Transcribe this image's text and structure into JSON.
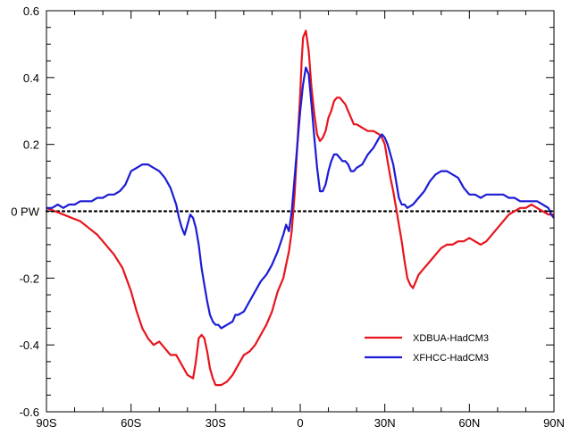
{
  "chart_data": {
    "type": "line",
    "title": "",
    "xlabel": "",
    "ylabel": "",
    "xlim": [
      -90,
      90
    ],
    "ylim": [
      -0.6,
      0.6
    ],
    "x_ticks": [
      {
        "value": -90,
        "label": "90S"
      },
      {
        "value": -60,
        "label": "60S"
      },
      {
        "value": -30,
        "label": "30S"
      },
      {
        "value": 0,
        "label": "0"
      },
      {
        "value": 30,
        "label": "30N"
      },
      {
        "value": 60,
        "label": "60N"
      },
      {
        "value": 90,
        "label": "90N"
      }
    ],
    "y_ticks": [
      {
        "value": -0.6,
        "label": "-0.6"
      },
      {
        "value": -0.4,
        "label": "-0.4"
      },
      {
        "value": -0.2,
        "label": "-0.2"
      },
      {
        "value": 0,
        "label": "0 PW"
      },
      {
        "value": 0.2,
        "label": "0.2"
      },
      {
        "value": 0.4,
        "label": "0.4"
      },
      {
        "value": 0.6,
        "label": "0.6"
      }
    ],
    "zero_line": "dotted",
    "grid": false,
    "legend": "bottom-right",
    "series": [
      {
        "name": "XDBUA-HadCM3",
        "color": "#e8141c",
        "points": [
          [
            -90,
            0.01
          ],
          [
            -87,
            0.0
          ],
          [
            -84,
            -0.01
          ],
          [
            -81,
            -0.02
          ],
          [
            -78,
            -0.03
          ],
          [
            -75,
            -0.05
          ],
          [
            -72,
            -0.07
          ],
          [
            -69,
            -0.1
          ],
          [
            -66,
            -0.13
          ],
          [
            -63,
            -0.17
          ],
          [
            -60,
            -0.24
          ],
          [
            -58,
            -0.3
          ],
          [
            -56,
            -0.35
          ],
          [
            -54,
            -0.38
          ],
          [
            -52,
            -0.4
          ],
          [
            -50,
            -0.39
          ],
          [
            -48,
            -0.41
          ],
          [
            -46,
            -0.43
          ],
          [
            -44,
            -0.43
          ],
          [
            -42,
            -0.46
          ],
          [
            -40,
            -0.49
          ],
          [
            -38,
            -0.5
          ],
          [
            -37,
            -0.45
          ],
          [
            -36,
            -0.38
          ],
          [
            -35,
            -0.37
          ],
          [
            -34,
            -0.38
          ],
          [
            -33,
            -0.42
          ],
          [
            -32,
            -0.47
          ],
          [
            -31,
            -0.5
          ],
          [
            -30,
            -0.52
          ],
          [
            -29,
            -0.52
          ],
          [
            -28,
            -0.52
          ],
          [
            -26,
            -0.51
          ],
          [
            -24,
            -0.49
          ],
          [
            -22,
            -0.46
          ],
          [
            -20,
            -0.43
          ],
          [
            -18,
            -0.42
          ],
          [
            -16,
            -0.4
          ],
          [
            -14,
            -0.37
          ],
          [
            -12,
            -0.34
          ],
          [
            -10,
            -0.3
          ],
          [
            -8,
            -0.24
          ],
          [
            -6,
            -0.2
          ],
          [
            -5,
            -0.16
          ],
          [
            -4,
            -0.12
          ],
          [
            -3,
            -0.06
          ],
          [
            -2,
            0.05
          ],
          [
            -1,
            0.2
          ],
          [
            0,
            0.35
          ],
          [
            0.5,
            0.45
          ],
          [
            1,
            0.52
          ],
          [
            2,
            0.54
          ],
          [
            3,
            0.48
          ],
          [
            4,
            0.37
          ],
          [
            5,
            0.29
          ],
          [
            6,
            0.23
          ],
          [
            7,
            0.21
          ],
          [
            8,
            0.22
          ],
          [
            9,
            0.24
          ],
          [
            10,
            0.28
          ],
          [
            11,
            0.3
          ],
          [
            12,
            0.33
          ],
          [
            13,
            0.34
          ],
          [
            14,
            0.34
          ],
          [
            15,
            0.33
          ],
          [
            16,
            0.32
          ],
          [
            17,
            0.3
          ],
          [
            18,
            0.28
          ],
          [
            19,
            0.26
          ],
          [
            20,
            0.26
          ],
          [
            22,
            0.25
          ],
          [
            24,
            0.24
          ],
          [
            26,
            0.24
          ],
          [
            28,
            0.23
          ],
          [
            29,
            0.22
          ],
          [
            30,
            0.2
          ],
          [
            31,
            0.15
          ],
          [
            32,
            0.1
          ],
          [
            33,
            0.06
          ],
          [
            34,
            0.01
          ],
          [
            35,
            -0.04
          ],
          [
            36,
            -0.09
          ],
          [
            37,
            -0.15
          ],
          [
            38,
            -0.2
          ],
          [
            39,
            -0.22
          ],
          [
            40,
            -0.23
          ],
          [
            41,
            -0.21
          ],
          [
            42,
            -0.19
          ],
          [
            44,
            -0.17
          ],
          [
            46,
            -0.15
          ],
          [
            48,
            -0.13
          ],
          [
            50,
            -0.11
          ],
          [
            52,
            -0.1
          ],
          [
            54,
            -0.1
          ],
          [
            56,
            -0.09
          ],
          [
            58,
            -0.09
          ],
          [
            60,
            -0.08
          ],
          [
            62,
            -0.09
          ],
          [
            64,
            -0.1
          ],
          [
            66,
            -0.09
          ],
          [
            68,
            -0.07
          ],
          [
            70,
            -0.05
          ],
          [
            72,
            -0.03
          ],
          [
            74,
            -0.01
          ],
          [
            76,
            0.0
          ],
          [
            78,
            0.01
          ],
          [
            80,
            0.01
          ],
          [
            82,
            0.02
          ],
          [
            84,
            0.01
          ],
          [
            86,
            0.0
          ],
          [
            88,
            -0.01
          ],
          [
            90,
            -0.01
          ]
        ]
      },
      {
        "name": "XFHCC-HadCM3",
        "color": "#1c1cd6",
        "points": [
          [
            -90,
            0.01
          ],
          [
            -88,
            0.01
          ],
          [
            -86,
            0.02
          ],
          [
            -84,
            0.01
          ],
          [
            -82,
            0.02
          ],
          [
            -80,
            0.02
          ],
          [
            -78,
            0.03
          ],
          [
            -76,
            0.03
          ],
          [
            -74,
            0.03
          ],
          [
            -72,
            0.04
          ],
          [
            -70,
            0.04
          ],
          [
            -68,
            0.05
          ],
          [
            -66,
            0.05
          ],
          [
            -64,
            0.06
          ],
          [
            -62,
            0.08
          ],
          [
            -60,
            0.12
          ],
          [
            -58,
            0.13
          ],
          [
            -56,
            0.14
          ],
          [
            -54,
            0.14
          ],
          [
            -52,
            0.13
          ],
          [
            -50,
            0.12
          ],
          [
            -48,
            0.1
          ],
          [
            -46,
            0.07
          ],
          [
            -44,
            0.02
          ],
          [
            -43,
            -0.02
          ],
          [
            -42,
            -0.05
          ],
          [
            -41,
            -0.07
          ],
          [
            -40,
            -0.04
          ],
          [
            -39,
            -0.01
          ],
          [
            -38,
            -0.02
          ],
          [
            -37,
            -0.05
          ],
          [
            -36,
            -0.1
          ],
          [
            -35,
            -0.17
          ],
          [
            -34,
            -0.22
          ],
          [
            -33,
            -0.27
          ],
          [
            -32,
            -0.31
          ],
          [
            -31,
            -0.33
          ],
          [
            -30,
            -0.34
          ],
          [
            -29,
            -0.34
          ],
          [
            -28,
            -0.35
          ],
          [
            -26,
            -0.34
          ],
          [
            -24,
            -0.33
          ],
          [
            -23,
            -0.31
          ],
          [
            -22,
            -0.31
          ],
          [
            -20,
            -0.3
          ],
          [
            -18,
            -0.27
          ],
          [
            -16,
            -0.24
          ],
          [
            -14,
            -0.21
          ],
          [
            -12,
            -0.19
          ],
          [
            -10,
            -0.16
          ],
          [
            -8,
            -0.12
          ],
          [
            -6,
            -0.07
          ],
          [
            -5,
            -0.04
          ],
          [
            -4,
            -0.06
          ],
          [
            -3,
            0.0
          ],
          [
            -2,
            0.1
          ],
          [
            -1,
            0.2
          ],
          [
            0,
            0.3
          ],
          [
            1,
            0.38
          ],
          [
            2,
            0.43
          ],
          [
            3,
            0.41
          ],
          [
            4,
            0.32
          ],
          [
            5,
            0.22
          ],
          [
            6,
            0.13
          ],
          [
            7,
            0.06
          ],
          [
            8,
            0.06
          ],
          [
            9,
            0.08
          ],
          [
            10,
            0.12
          ],
          [
            11,
            0.15
          ],
          [
            12,
            0.17
          ],
          [
            13,
            0.17
          ],
          [
            14,
            0.16
          ],
          [
            15,
            0.15
          ],
          [
            16,
            0.15
          ],
          [
            17,
            0.14
          ],
          [
            18,
            0.12
          ],
          [
            19,
            0.12
          ],
          [
            20,
            0.13
          ],
          [
            22,
            0.14
          ],
          [
            24,
            0.17
          ],
          [
            26,
            0.19
          ],
          [
            28,
            0.22
          ],
          [
            29,
            0.23
          ],
          [
            30,
            0.22
          ],
          [
            31,
            0.2
          ],
          [
            32,
            0.17
          ],
          [
            33,
            0.14
          ],
          [
            34,
            0.09
          ],
          [
            35,
            0.04
          ],
          [
            36,
            0.02
          ],
          [
            37,
            0.02
          ],
          [
            38,
            0.01
          ],
          [
            40,
            0.02
          ],
          [
            42,
            0.04
          ],
          [
            44,
            0.06
          ],
          [
            46,
            0.09
          ],
          [
            48,
            0.11
          ],
          [
            50,
            0.12
          ],
          [
            52,
            0.12
          ],
          [
            54,
            0.11
          ],
          [
            56,
            0.1
          ],
          [
            58,
            0.07
          ],
          [
            60,
            0.05
          ],
          [
            62,
            0.05
          ],
          [
            64,
            0.04
          ],
          [
            66,
            0.05
          ],
          [
            68,
            0.05
          ],
          [
            70,
            0.05
          ],
          [
            72,
            0.05
          ],
          [
            74,
            0.04
          ],
          [
            76,
            0.04
          ],
          [
            78,
            0.03
          ],
          [
            80,
            0.03
          ],
          [
            82,
            0.03
          ],
          [
            84,
            0.03
          ],
          [
            86,
            0.02
          ],
          [
            88,
            0.01
          ],
          [
            89,
            -0.01
          ],
          [
            90,
            -0.02
          ]
        ]
      }
    ]
  }
}
